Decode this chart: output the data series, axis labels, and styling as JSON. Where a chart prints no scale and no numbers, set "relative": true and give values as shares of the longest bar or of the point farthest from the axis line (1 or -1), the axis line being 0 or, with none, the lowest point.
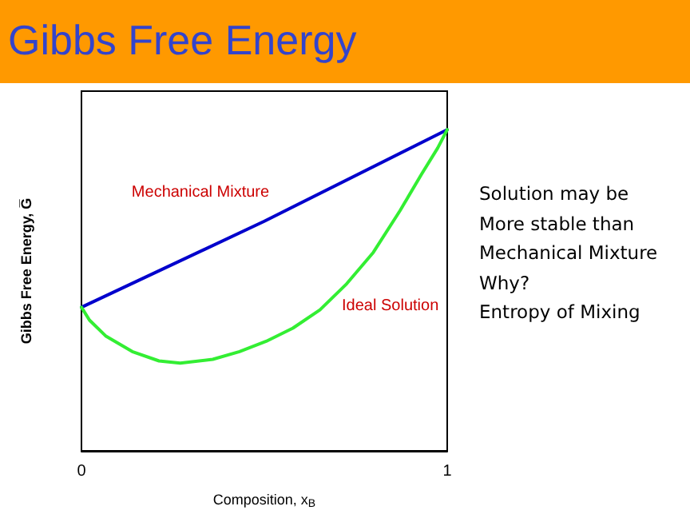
{
  "chart_data": {
    "type": "line",
    "title": "Gibbs Free Energy",
    "xlabel": "Composition, x$_{B}$",
    "ylabel": "Gibbs Free Energy, G̅",
    "relative": true,
    "xlim": [
      0,
      1
    ],
    "xticks": [
      0,
      1
    ],
    "tick_labels": "x",
    "grid": false,
    "legend": false,
    "marker": "none",
    "line_style": "solid",
    "series": [
      {
        "name": "Mechanical Mixture",
        "color": "#0000cc",
        "x": [
          0,
          0.5,
          1
        ],
        "values": [
          0.447,
          0.715,
          1
        ]
      },
      {
        "name": "Ideal Solution",
        "color": "#33ee33",
        "x": [
          0,
          0.022,
          0.066,
          0.139,
          0.212,
          0.27,
          0.359,
          0.432,
          0.505,
          0.578,
          0.652,
          0.725,
          0.798,
          0.871,
          0.93,
          0.974,
          1
        ],
        "values": [
          0.447,
          0.407,
          0.358,
          0.309,
          0.28,
          0.273,
          0.285,
          0.309,
          0.341,
          0.382,
          0.439,
          0.52,
          0.618,
          0.748,
          0.862,
          0.943,
          1
        ]
      }
    ],
    "annotations": [
      "Solution may be",
      "More stable than",
      "Mechanical Mixture",
      "Why?",
      "Entropy of Mixing"
    ]
  }
}
